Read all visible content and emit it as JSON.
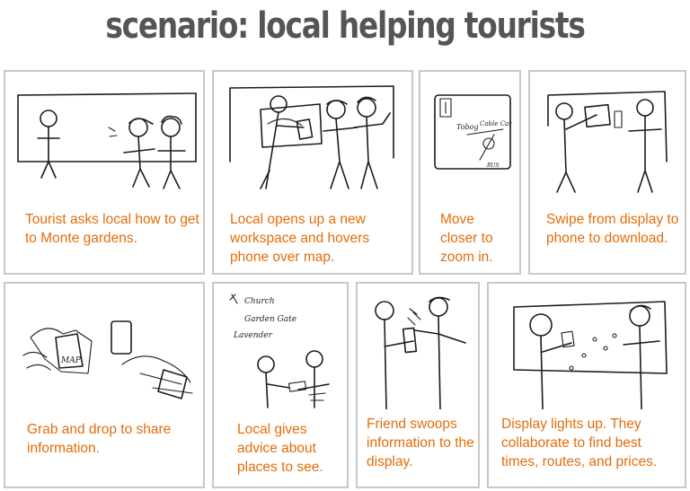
{
  "title": "scenario: local helping tourists",
  "accent_color": "#e46c0a",
  "panels": [
    {
      "caption": "Tourist asks local how to get to Monte gardens."
    },
    {
      "caption": "Local opens up a new workspace and hovers phone over map."
    },
    {
      "caption": "Move closer to zoom in.",
      "sketch_labels": [
        "Tobog",
        "Cable Car",
        "BUS"
      ]
    },
    {
      "caption": "Swipe from display to phone to download."
    },
    {
      "caption": "Grab and drop to share information.",
      "sketch_labels": [
        "MAP"
      ]
    },
    {
      "caption": "Local gives advice about places to see.",
      "sketch_labels": [
        "Church",
        "Garden Gate",
        "Lavender"
      ]
    },
    {
      "caption": "Friend swoops information to the display."
    },
    {
      "caption": "Display lights up. They collaborate to find best times, routes, and prices."
    }
  ]
}
